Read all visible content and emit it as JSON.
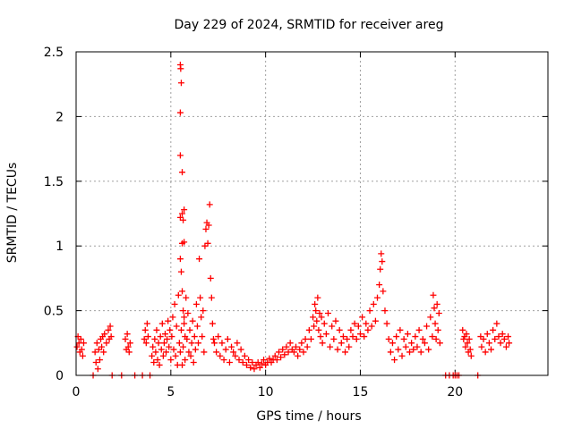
{
  "chart_data": {
    "type": "scatter",
    "title": "Day 229 of 2024, SRMTID for receiver areg",
    "xlabel": "GPS time / hours",
    "ylabel": "SRMTID / TECUs",
    "xlim": [
      0,
      24.9
    ],
    "ylim": [
      0,
      2.5
    ],
    "xticks": [
      0,
      5,
      10,
      15,
      20
    ],
    "yticks": [
      0,
      0.5,
      1,
      1.5,
      2,
      2.5
    ],
    "xtick_labels": [
      "0",
      "5",
      "10",
      "15",
      "20"
    ],
    "ytick_labels": [
      "0",
      "0.5",
      "1",
      "1.5",
      "2",
      "2.5"
    ],
    "grid": true,
    "marker": "+",
    "color": "#ff0000",
    "series": [
      {
        "name": "SRMTID",
        "points": [
          [
            0.05,
            0.22
          ],
          [
            0.1,
            0.3
          ],
          [
            0.15,
            0.25
          ],
          [
            0.2,
            0.18
          ],
          [
            0.25,
            0.28
          ],
          [
            0.3,
            0.2
          ],
          [
            0.35,
            0.15
          ],
          [
            0.4,
            0.25
          ],
          [
            0.9,
            0.0
          ],
          [
            1.0,
            0.18
          ],
          [
            1.05,
            0.1
          ],
          [
            1.1,
            0.25
          ],
          [
            1.15,
            0.05
          ],
          [
            1.2,
            0.2
          ],
          [
            1.25,
            0.12
          ],
          [
            1.3,
            0.28
          ],
          [
            1.35,
            0.22
          ],
          [
            1.4,
            0.3
          ],
          [
            1.45,
            0.18
          ],
          [
            1.5,
            0.32
          ],
          [
            1.6,
            0.25
          ],
          [
            1.7,
            0.35
          ],
          [
            1.75,
            0.28
          ],
          [
            1.8,
            0.38
          ],
          [
            1.85,
            0.3
          ],
          [
            1.9,
            0.0
          ],
          [
            2.4,
            0.0
          ],
          [
            2.6,
            0.28
          ],
          [
            2.65,
            0.2
          ],
          [
            2.7,
            0.32
          ],
          [
            2.75,
            0.22
          ],
          [
            2.8,
            0.18
          ],
          [
            2.85,
            0.25
          ],
          [
            3.1,
            0.0
          ],
          [
            3.5,
            0.0
          ],
          [
            3.6,
            0.28
          ],
          [
            3.65,
            0.35
          ],
          [
            3.7,
            0.25
          ],
          [
            3.75,
            0.4
          ],
          [
            3.8,
            0.3
          ],
          [
            3.9,
            0.0
          ],
          [
            4.0,
            0.15
          ],
          [
            4.05,
            0.22
          ],
          [
            4.1,
            0.1
          ],
          [
            4.15,
            0.28
          ],
          [
            4.2,
            0.18
          ],
          [
            4.25,
            0.35
          ],
          [
            4.3,
            0.12
          ],
          [
            4.35,
            0.25
          ],
          [
            4.4,
            0.08
          ],
          [
            4.45,
            0.3
          ],
          [
            4.5,
            0.2
          ],
          [
            4.55,
            0.4
          ],
          [
            4.6,
            0.15
          ],
          [
            4.65,
            0.25
          ],
          [
            4.7,
            0.32
          ],
          [
            4.75,
            0.18
          ],
          [
            4.8,
            0.28
          ],
          [
            4.85,
            0.42
          ],
          [
            4.9,
            0.22
          ],
          [
            4.95,
            0.35
          ],
          [
            5.0,
            0.12
          ],
          [
            5.05,
            0.3
          ],
          [
            5.1,
            0.45
          ],
          [
            5.15,
            0.2
          ],
          [
            5.2,
            0.55
          ],
          [
            5.25,
            0.15
          ],
          [
            5.3,
            0.38
          ],
          [
            5.35,
            0.08
          ],
          [
            5.4,
            0.62
          ],
          [
            5.45,
            0.25
          ],
          [
            5.5,
            2.4
          ],
          [
            5.52,
            2.37
          ],
          [
            5.55,
            2.26
          ],
          [
            5.5,
            2.03
          ],
          [
            5.5,
            1.7
          ],
          [
            5.6,
            1.57
          ],
          [
            5.5,
            1.22
          ],
          [
            5.7,
            1.28
          ],
          [
            5.6,
            1.25
          ],
          [
            5.65,
            1.2
          ],
          [
            5.7,
            1.03
          ],
          [
            5.6,
            1.02
          ],
          [
            5.5,
            0.9
          ],
          [
            5.55,
            0.8
          ],
          [
            5.6,
            0.65
          ],
          [
            5.65,
            0.5
          ],
          [
            5.7,
            0.4
          ],
          [
            5.75,
            0.3
          ],
          [
            5.5,
            0.18
          ],
          [
            5.55,
            0.35
          ],
          [
            5.6,
            0.08
          ],
          [
            5.65,
            0.22
          ],
          [
            5.7,
            0.45
          ],
          [
            5.75,
            0.12
          ],
          [
            5.8,
            0.6
          ],
          [
            5.85,
            0.28
          ],
          [
            5.9,
            0.48
          ],
          [
            5.95,
            0.18
          ],
          [
            6.0,
            0.35
          ],
          [
            6.05,
            0.15
          ],
          [
            6.1,
            0.25
          ],
          [
            6.15,
            0.42
          ],
          [
            6.2,
            0.1
          ],
          [
            6.25,
            0.3
          ],
          [
            6.3,
            0.2
          ],
          [
            6.35,
            0.55
          ],
          [
            6.4,
            0.38
          ],
          [
            6.45,
            0.25
          ],
          [
            6.5,
            0.9
          ],
          [
            6.55,
            0.6
          ],
          [
            6.6,
            0.45
          ],
          [
            6.65,
            0.3
          ],
          [
            6.7,
            0.5
          ],
          [
            6.75,
            0.18
          ],
          [
            6.8,
            1.0
          ],
          [
            6.85,
            1.13
          ],
          [
            6.9,
            1.18
          ],
          [
            6.95,
            1.02
          ],
          [
            7.0,
            1.16
          ],
          [
            7.05,
            1.32
          ],
          [
            7.1,
            0.75
          ],
          [
            7.15,
            0.6
          ],
          [
            7.2,
            0.4
          ],
          [
            7.25,
            0.28
          ],
          [
            7.3,
            0.25
          ],
          [
            7.4,
            0.18
          ],
          [
            7.5,
            0.3
          ],
          [
            7.6,
            0.15
          ],
          [
            7.7,
            0.25
          ],
          [
            7.8,
            0.12
          ],
          [
            7.9,
            0.2
          ],
          [
            8.0,
            0.28
          ],
          [
            8.1,
            0.1
          ],
          [
            8.2,
            0.22
          ],
          [
            8.3,
            0.18
          ],
          [
            8.4,
            0.15
          ],
          [
            8.5,
            0.25
          ],
          [
            8.6,
            0.12
          ],
          [
            8.7,
            0.2
          ],
          [
            8.8,
            0.1
          ],
          [
            8.9,
            0.15
          ],
          [
            9.0,
            0.08
          ],
          [
            9.1,
            0.12
          ],
          [
            9.2,
            0.06
          ],
          [
            9.3,
            0.1
          ],
          [
            9.4,
            0.05
          ],
          [
            9.5,
            0.08
          ],
          [
            9.6,
            0.1
          ],
          [
            9.7,
            0.06
          ],
          [
            9.8,
            0.09
          ],
          [
            9.9,
            0.12
          ],
          [
            10.0,
            0.08
          ],
          [
            10.1,
            0.1
          ],
          [
            10.2,
            0.13
          ],
          [
            10.3,
            0.1
          ],
          [
            10.4,
            0.12
          ],
          [
            10.5,
            0.15
          ],
          [
            10.6,
            0.12
          ],
          [
            10.7,
            0.18
          ],
          [
            10.8,
            0.14
          ],
          [
            10.9,
            0.2
          ],
          [
            11.0,
            0.16
          ],
          [
            11.1,
            0.22
          ],
          [
            11.2,
            0.18
          ],
          [
            11.3,
            0.25
          ],
          [
            11.4,
            0.2
          ],
          [
            11.5,
            0.18
          ],
          [
            11.6,
            0.22
          ],
          [
            11.7,
            0.15
          ],
          [
            11.8,
            0.2
          ],
          [
            11.9,
            0.25
          ],
          [
            12.0,
            0.18
          ],
          [
            12.1,
            0.28
          ],
          [
            12.2,
            0.22
          ],
          [
            12.3,
            0.35
          ],
          [
            12.4,
            0.28
          ],
          [
            12.5,
            0.45
          ],
          [
            12.55,
            0.38
          ],
          [
            12.6,
            0.55
          ],
          [
            12.65,
            0.5
          ],
          [
            12.7,
            0.42
          ],
          [
            12.75,
            0.6
          ],
          [
            12.8,
            0.35
          ],
          [
            12.85,
            0.48
          ],
          [
            12.9,
            0.3
          ],
          [
            12.95,
            0.45
          ],
          [
            13.0,
            0.25
          ],
          [
            13.1,
            0.4
          ],
          [
            13.2,
            0.32
          ],
          [
            13.3,
            0.48
          ],
          [
            13.4,
            0.22
          ],
          [
            13.5,
            0.38
          ],
          [
            13.6,
            0.28
          ],
          [
            13.7,
            0.42
          ],
          [
            13.8,
            0.2
          ],
          [
            13.9,
            0.35
          ],
          [
            14.0,
            0.25
          ],
          [
            14.1,
            0.3
          ],
          [
            14.2,
            0.18
          ],
          [
            14.3,
            0.28
          ],
          [
            14.4,
            0.22
          ],
          [
            14.5,
            0.35
          ],
          [
            14.6,
            0.3
          ],
          [
            14.7,
            0.4
          ],
          [
            14.8,
            0.28
          ],
          [
            14.9,
            0.38
          ],
          [
            15.0,
            0.32
          ],
          [
            15.1,
            0.45
          ],
          [
            15.2,
            0.3
          ],
          [
            15.3,
            0.4
          ],
          [
            15.4,
            0.35
          ],
          [
            15.5,
            0.5
          ],
          [
            15.6,
            0.38
          ],
          [
            15.7,
            0.55
          ],
          [
            15.8,
            0.42
          ],
          [
            15.9,
            0.6
          ],
          [
            16.0,
            0.7
          ],
          [
            16.05,
            0.82
          ],
          [
            16.1,
            0.94
          ],
          [
            16.15,
            0.88
          ],
          [
            16.2,
            0.65
          ],
          [
            16.3,
            0.5
          ],
          [
            16.4,
            0.4
          ],
          [
            16.5,
            0.28
          ],
          [
            16.6,
            0.18
          ],
          [
            16.7,
            0.25
          ],
          [
            16.8,
            0.12
          ],
          [
            16.9,
            0.3
          ],
          [
            17.0,
            0.2
          ],
          [
            17.1,
            0.35
          ],
          [
            17.2,
            0.15
          ],
          [
            17.3,
            0.28
          ],
          [
            17.4,
            0.22
          ],
          [
            17.5,
            0.32
          ],
          [
            17.6,
            0.18
          ],
          [
            17.7,
            0.25
          ],
          [
            17.8,
            0.2
          ],
          [
            17.9,
            0.3
          ],
          [
            18.0,
            0.22
          ],
          [
            18.1,
            0.35
          ],
          [
            18.2,
            0.18
          ],
          [
            18.3,
            0.28
          ],
          [
            18.4,
            0.25
          ],
          [
            18.5,
            0.38
          ],
          [
            18.6,
            0.2
          ],
          [
            18.7,
            0.45
          ],
          [
            18.8,
            0.3
          ],
          [
            18.85,
            0.62
          ],
          [
            18.9,
            0.52
          ],
          [
            18.95,
            0.4
          ],
          [
            19.0,
            0.28
          ],
          [
            19.05,
            0.55
          ],
          [
            19.1,
            0.35
          ],
          [
            19.15,
            0.48
          ],
          [
            19.2,
            0.25
          ],
          [
            19.5,
            0.0
          ],
          [
            19.7,
            0.0
          ],
          [
            19.9,
            0.0
          ],
          [
            20.0,
            0.0
          ],
          [
            20.1,
            0.0
          ],
          [
            20.2,
            0.0
          ],
          [
            20.4,
            0.35
          ],
          [
            20.45,
            0.28
          ],
          [
            20.5,
            0.3
          ],
          [
            20.55,
            0.22
          ],
          [
            20.6,
            0.32
          ],
          [
            20.65,
            0.25
          ],
          [
            20.7,
            0.18
          ],
          [
            20.75,
            0.28
          ],
          [
            20.8,
            0.2
          ],
          [
            20.85,
            0.15
          ],
          [
            21.2,
            0.0
          ],
          [
            21.35,
            0.3
          ],
          [
            21.4,
            0.22
          ],
          [
            21.5,
            0.28
          ],
          [
            21.6,
            0.18
          ],
          [
            21.7,
            0.32
          ],
          [
            21.8,
            0.25
          ],
          [
            21.9,
            0.2
          ],
          [
            22.0,
            0.35
          ],
          [
            22.1,
            0.28
          ],
          [
            22.2,
            0.4
          ],
          [
            22.3,
            0.3
          ],
          [
            22.4,
            0.25
          ],
          [
            22.5,
            0.32
          ],
          [
            22.6,
            0.28
          ],
          [
            22.7,
            0.22
          ],
          [
            22.8,
            0.3
          ],
          [
            22.85,
            0.25
          ]
        ]
      }
    ]
  }
}
